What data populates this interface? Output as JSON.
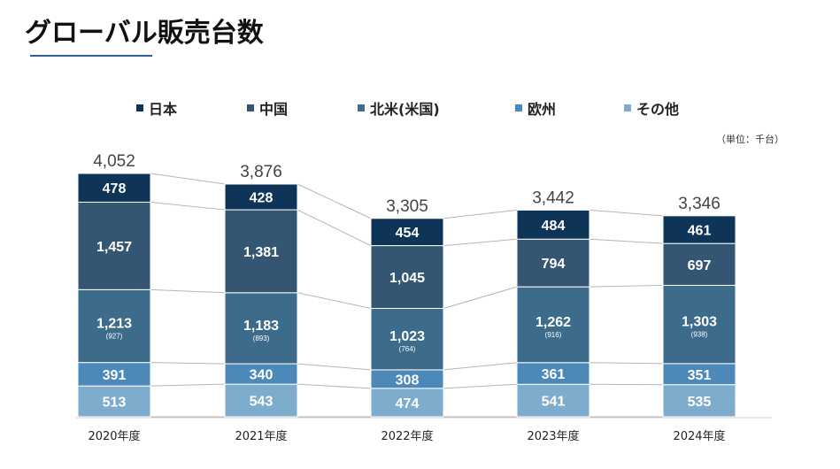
{
  "page": {
    "title": "グローバル販売台数",
    "unit": "（単位：千台）"
  },
  "chart_data": {
    "type": "bar",
    "stacked": true,
    "categories": [
      "2020年度",
      "2021年度",
      "2022年度",
      "2023年度",
      "2024年度"
    ],
    "totals": [
      "4,052",
      "3,876",
      "3,305",
      "3,442",
      "3,346"
    ],
    "series": [
      {
        "name": "その他",
        "color": "#7eaccd",
        "values": [
          513,
          543,
          474,
          541,
          535
        ],
        "labels": [
          "513",
          "543",
          "474",
          "541",
          "535"
        ]
      },
      {
        "name": "欧州",
        "color": "#4c89b8",
        "values": [
          391,
          340,
          308,
          361,
          351
        ],
        "labels": [
          "391",
          "340",
          "308",
          "361",
          "351"
        ]
      },
      {
        "name": "北米(米国)",
        "color": "#3d6b8c",
        "values": [
          1213,
          1183,
          1023,
          1262,
          1303
        ],
        "labels": [
          "1,213",
          "1,183",
          "1,023",
          "1,262",
          "1,303"
        ],
        "sublabels": [
          "(927)",
          "(893)",
          "(764)",
          "(916)",
          "(938)"
        ]
      },
      {
        "name": "中国",
        "color": "#345672",
        "values": [
          1457,
          1381,
          1045,
          794,
          697
        ],
        "labels": [
          "1,457",
          "1,381",
          "1,045",
          "794",
          "697"
        ]
      },
      {
        "name": "日本",
        "color": "#0e3557",
        "values": [
          478,
          428,
          454,
          484,
          461
        ],
        "labels": [
          "478",
          "428",
          "454",
          "484",
          "461"
        ]
      }
    ],
    "legend": [
      {
        "name": "日本",
        "color": "#0e3557"
      },
      {
        "name": "中国",
        "color": "#345672"
      },
      {
        "name": "北米(米国)",
        "color": "#3d6b8c"
      },
      {
        "name": "欧州",
        "color": "#4c89b8"
      },
      {
        "name": "その他",
        "color": "#7eaccd"
      }
    ],
    "legend_position": "top",
    "grid": false,
    "ylim": [
      0,
      4600
    ]
  }
}
